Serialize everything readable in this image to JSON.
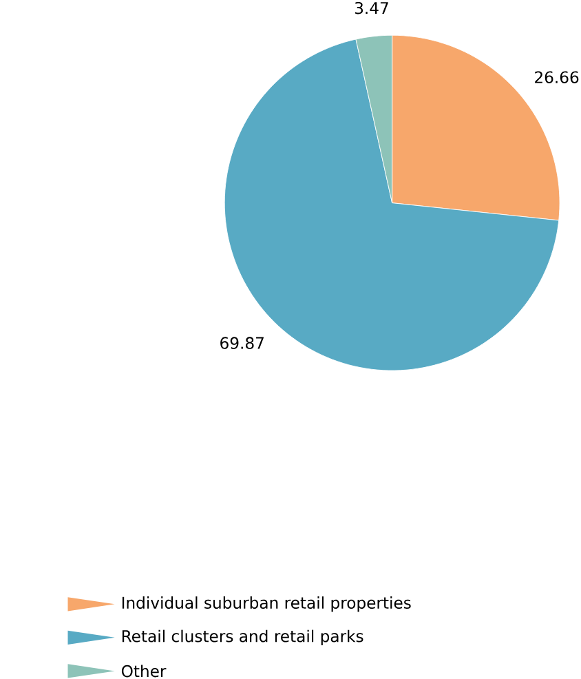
{
  "chart_data": {
    "type": "pie",
    "categories": [
      "Individual suburban retail properties",
      "Retail clusters and retail parks",
      "Other"
    ],
    "values": [
      26.66,
      69.87,
      3.47
    ],
    "colors": [
      "#f7a76b",
      "#58aac4",
      "#8dc3b8"
    ],
    "data_labels": true,
    "legend": "bottom"
  }
}
